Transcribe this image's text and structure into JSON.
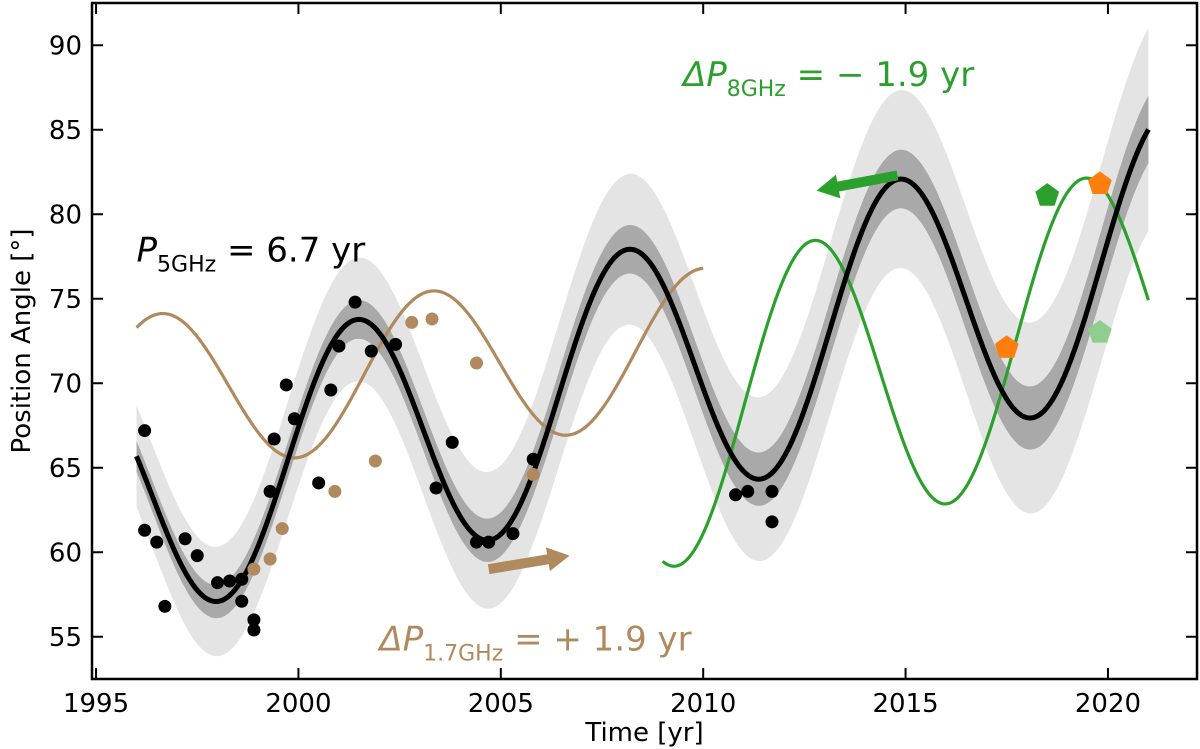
{
  "chart_data": {
    "type": "line",
    "xlabel": "Time [yr]",
    "ylabel": "Position Angle [°]",
    "xlim": [
      1994.9,
      2022.2
    ],
    "ylim": [
      52.5,
      92.5
    ],
    "xticks": [
      1995,
      2000,
      2005,
      2010,
      2015,
      2020
    ],
    "yticks": [
      55,
      60,
      65,
      70,
      75,
      80,
      85,
      90
    ],
    "grid": false,
    "colors": {
      "model": "#000000",
      "band_inner": "#a9a9a9",
      "band_outer": "#e4e4e4",
      "brown": "#b08a5e",
      "green": "#2ca02c",
      "light_green": "#8fce8f",
      "orange": "#ff7f0e"
    },
    "model": {
      "name": "5 GHz",
      "x_range": [
        1996,
        2021
      ],
      "period_yr": 6.7,
      "peak_epoch": 2001.4,
      "trend": {
        "intercept": 63.2,
        "slope_per_yr": 0.58,
        "ref_year": 1996
      },
      "amplitude_start": 7.2,
      "amplitude_slope": 0.04
    },
    "bands": {
      "inner_half_width": [
        0.9,
        2.0
      ],
      "outer_half_width": [
        3.0,
        6.0
      ]
    },
    "brown_curve": {
      "x_range": [
        1996,
        2010
      ],
      "offset": 69.4,
      "amplitude": 4.6,
      "trend_per_yr": 0.2,
      "peak_epoch": 2003.3,
      "period_yr": 6.7
    },
    "green_curve": {
      "x_range": [
        2009,
        2021
      ],
      "offset": 67.7,
      "amplitude": 8.7,
      "trend_per_yr": 0.55,
      "peak_epoch": 2012.7,
      "period_yr": 6.7
    },
    "black_points": [
      [
        1996.2,
        67.2
      ],
      [
        1996.2,
        61.3
      ],
      [
        1996.5,
        60.6
      ],
      [
        1996.7,
        56.8
      ],
      [
        1997.2,
        60.8
      ],
      [
        1997.5,
        59.8
      ],
      [
        1998.0,
        58.2
      ],
      [
        1998.3,
        58.3
      ],
      [
        1998.6,
        58.4
      ],
      [
        1998.6,
        57.1
      ],
      [
        1998.9,
        56.0
      ],
      [
        1998.9,
        55.4
      ],
      [
        1999.3,
        63.6
      ],
      [
        1999.4,
        66.7
      ],
      [
        1999.7,
        69.9
      ],
      [
        1999.9,
        67.9
      ],
      [
        2000.5,
        64.1
      ],
      [
        2000.8,
        69.6
      ],
      [
        2001.0,
        72.2
      ],
      [
        2001.4,
        74.8
      ],
      [
        2001.8,
        71.9
      ],
      [
        2002.4,
        72.3
      ],
      [
        2003.4,
        63.8
      ],
      [
        2003.8,
        66.5
      ],
      [
        2004.4,
        60.6
      ],
      [
        2004.7,
        60.6
      ],
      [
        2005.3,
        61.1
      ],
      [
        2005.8,
        65.5
      ],
      [
        2010.8,
        63.4
      ],
      [
        2011.1,
        63.6
      ],
      [
        2011.7,
        63.6
      ],
      [
        2011.7,
        61.8
      ]
    ],
    "brown_points": [
      [
        1998.9,
        59.0
      ],
      [
        1999.3,
        59.6
      ],
      [
        1999.6,
        61.4
      ],
      [
        2000.9,
        63.6
      ],
      [
        2001.9,
        65.4
      ],
      [
        2002.8,
        73.6
      ],
      [
        2003.3,
        73.8
      ],
      [
        2004.4,
        71.2
      ],
      [
        2005.8,
        64.6
      ]
    ],
    "pentagons": [
      {
        "x": 2017.5,
        "y": 72.1,
        "color": "orange"
      },
      {
        "x": 2019.8,
        "y": 81.8,
        "color": "orange"
      },
      {
        "x": 2018.5,
        "y": 81.1,
        "color": "green"
      },
      {
        "x": 2019.8,
        "y": 73.0,
        "color": "light_green"
      }
    ],
    "arrows": [
      {
        "from": [
          2004.7,
          59.0
        ],
        "to": [
          2006.7,
          59.8
        ],
        "color": "brown"
      },
      {
        "from": [
          2014.8,
          82.3
        ],
        "to": [
          2012.8,
          81.4
        ],
        "color": "green"
      }
    ],
    "annotations": [
      {
        "id": "p5",
        "sym": "P",
        "sub": "5GHz",
        "rest": " = 6.7 yr",
        "x": 1996.0,
        "y": 77.2,
        "color": "#000000"
      },
      {
        "id": "dp17",
        "sym": "ΔP",
        "sub": "1.7GHz",
        "rest": " = + 1.9 yr",
        "x": 2002.0,
        "y": 54.2,
        "color": "#b08a5e"
      },
      {
        "id": "dp8",
        "sym": "ΔP",
        "sub": "8GHz",
        "rest": " = − 1.9 yr",
        "x": 2009.5,
        "y": 87.6,
        "color": "#2ca02c"
      }
    ]
  }
}
